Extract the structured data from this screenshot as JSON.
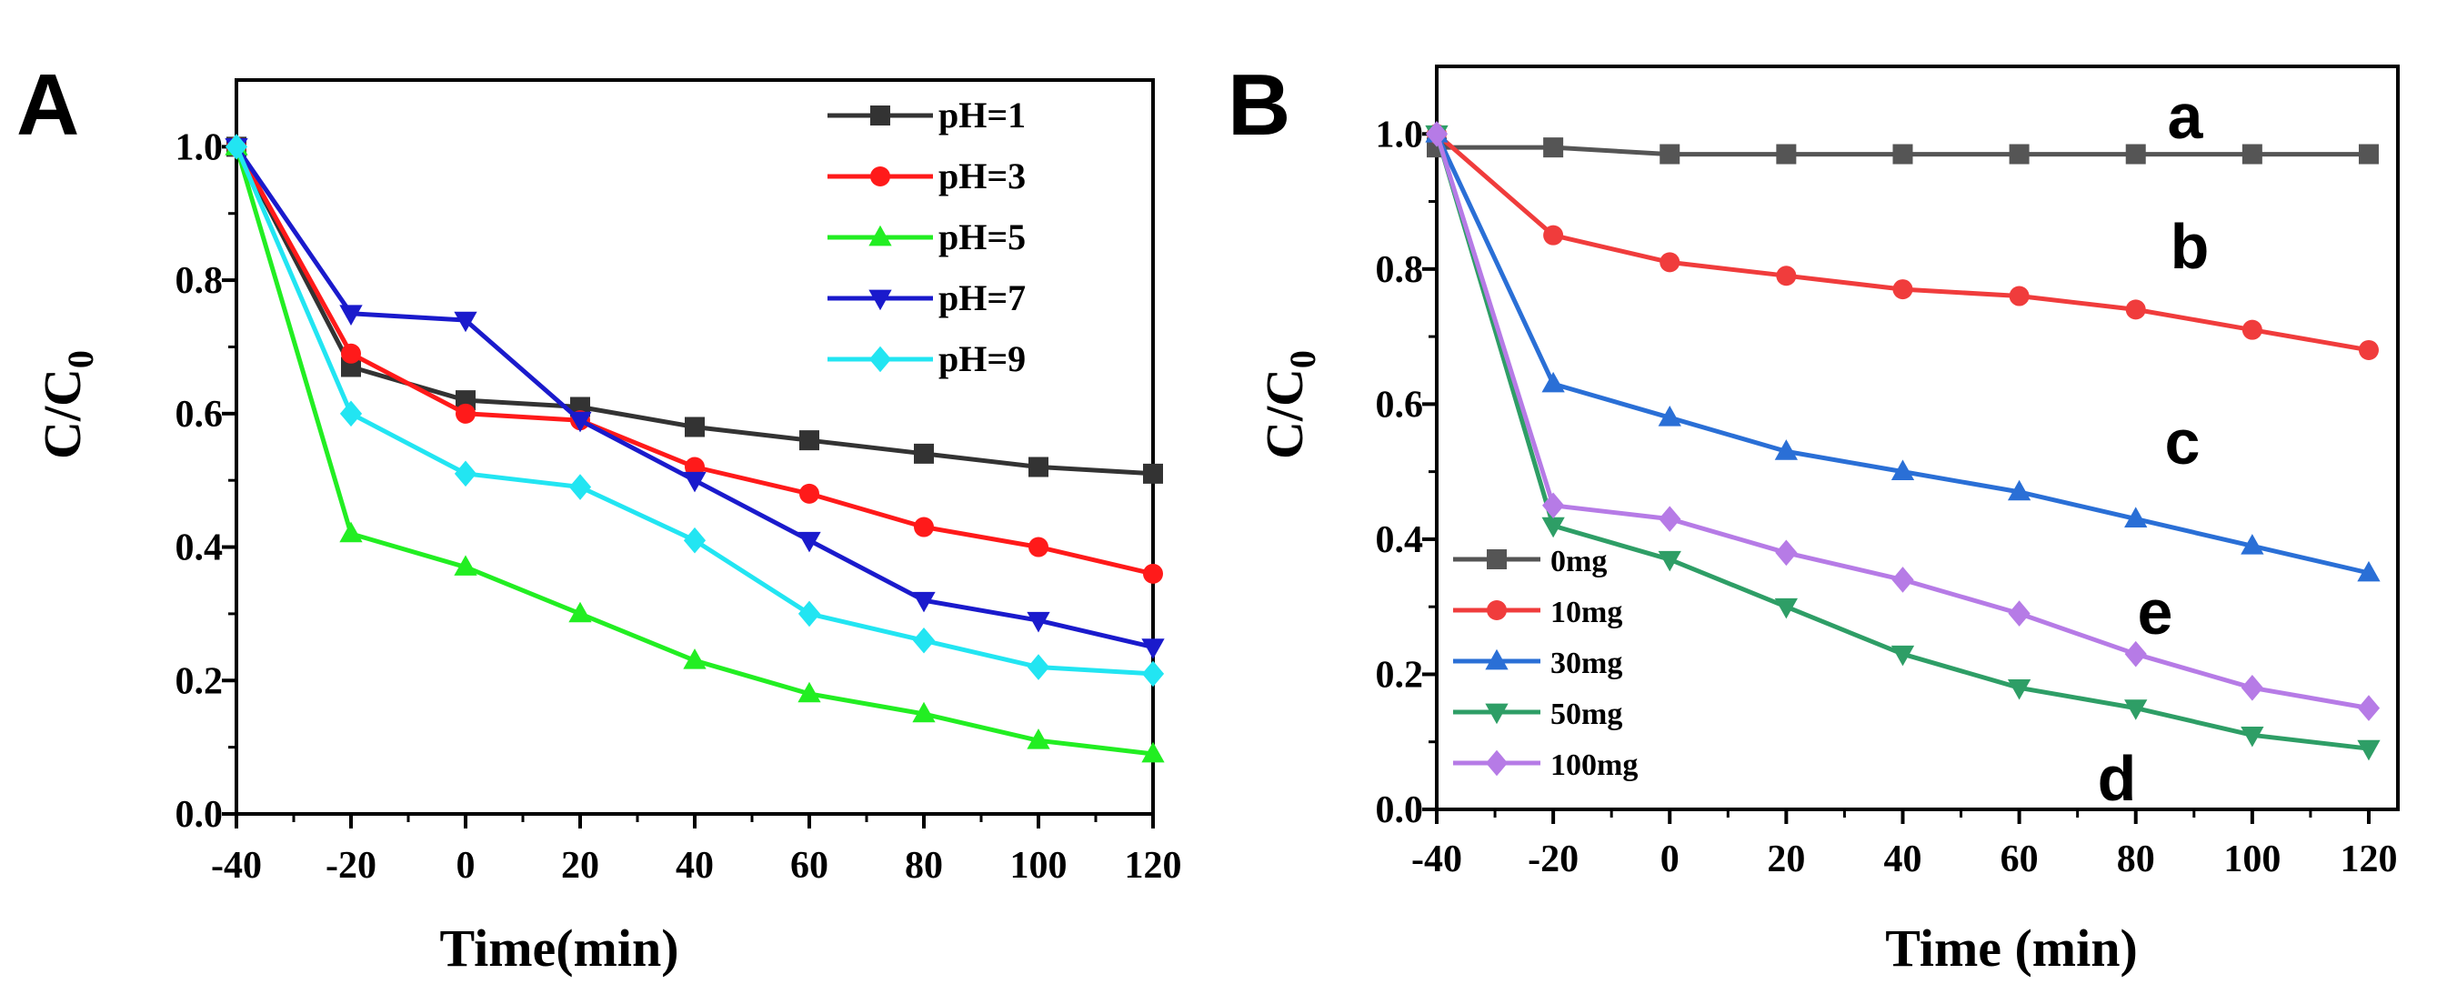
{
  "chart_data": [
    {
      "type": "line",
      "panel_label": "A",
      "title": "",
      "xlabel": "Time(min)",
      "ylabel_main": "C/C",
      "ylabel_sub": "0",
      "x": [
        -40,
        -20,
        0,
        20,
        40,
        60,
        80,
        100,
        120
      ],
      "x_tick_labels": [
        "-40",
        "-20",
        "0",
        "20",
        "40",
        "60",
        "80",
        "100",
        "120"
      ],
      "y_ticks": [
        0.0,
        0.2,
        0.4,
        0.6,
        0.8,
        1.0
      ],
      "y_tick_labels": [
        "0.0",
        "0.2",
        "0.4",
        "0.6",
        "0.8",
        "1.0"
      ],
      "xlim": [
        -40,
        120
      ],
      "ylim": [
        0,
        1.1
      ],
      "legend_position": "top-right",
      "series": [
        {
          "name": "pH=1",
          "color": "#333333",
          "marker": "square",
          "values": [
            1.0,
            0.67,
            0.62,
            0.61,
            0.58,
            0.56,
            0.54,
            0.52,
            0.51
          ]
        },
        {
          "name": "pH=3",
          "color": "#ff1a1a",
          "marker": "circle",
          "values": [
            1.0,
            0.69,
            0.6,
            0.59,
            0.52,
            0.48,
            0.43,
            0.4,
            0.36
          ]
        },
        {
          "name": "pH=5",
          "color": "#22ee22",
          "marker": "triangle-up",
          "values": [
            1.0,
            0.42,
            0.37,
            0.3,
            0.23,
            0.18,
            0.15,
            0.11,
            0.09
          ]
        },
        {
          "name": "pH=7",
          "color": "#1a1acc",
          "marker": "triangle-down",
          "values": [
            1.0,
            0.75,
            0.74,
            0.59,
            0.5,
            0.41,
            0.32,
            0.29,
            0.25
          ]
        },
        {
          "name": "pH=9",
          "color": "#22e5f2",
          "marker": "diamond",
          "values": [
            1.0,
            0.6,
            0.51,
            0.49,
            0.41,
            0.3,
            0.26,
            0.22,
            0.21
          ]
        }
      ]
    },
    {
      "type": "line",
      "panel_label": "B",
      "title": "",
      "xlabel": "Time (min)",
      "ylabel_main": "C/C",
      "ylabel_sub": "0",
      "x": [
        -40,
        -20,
        0,
        20,
        40,
        60,
        80,
        100,
        120
      ],
      "x_tick_labels": [
        "-40",
        "-20",
        "0",
        "20",
        "40",
        "60",
        "80",
        "100",
        "120"
      ],
      "y_ticks": [
        0.0,
        0.2,
        0.4,
        0.6,
        0.8,
        1.0
      ],
      "y_tick_labels": [
        "0.0",
        "0.2",
        "0.4",
        "0.6",
        "0.8",
        "1.0"
      ],
      "xlim": [
        -40,
        125
      ],
      "ylim": [
        0,
        1.1
      ],
      "legend_position": "bottom-left",
      "series": [
        {
          "name": "0mg",
          "curve_label": "a",
          "color": "#555555",
          "marker": "square",
          "values": [
            0.98,
            0.98,
            0.97,
            0.97,
            0.97,
            0.97,
            0.97,
            0.97,
            0.97
          ]
        },
        {
          "name": "10mg",
          "curve_label": "b",
          "color": "#f03c3c",
          "marker": "circle",
          "values": [
            1.0,
            0.85,
            0.81,
            0.79,
            0.77,
            0.76,
            0.74,
            0.71,
            0.68
          ]
        },
        {
          "name": "30mg",
          "curve_label": "c",
          "color": "#2a6fd6",
          "marker": "triangle-up",
          "values": [
            1.0,
            0.63,
            0.58,
            0.53,
            0.5,
            0.47,
            0.43,
            0.39,
            0.35
          ]
        },
        {
          "name": "50mg",
          "curve_label": "d",
          "color": "#2e9e66",
          "marker": "triangle-down",
          "values": [
            1.0,
            0.42,
            0.37,
            0.3,
            0.23,
            0.18,
            0.15,
            0.11,
            0.09
          ]
        },
        {
          "name": "100mg",
          "curve_label": "e",
          "color": "#b67be6",
          "marker": "diamond",
          "values": [
            1.0,
            0.45,
            0.43,
            0.38,
            0.34,
            0.29,
            0.23,
            0.18,
            0.15
          ]
        }
      ]
    }
  ]
}
